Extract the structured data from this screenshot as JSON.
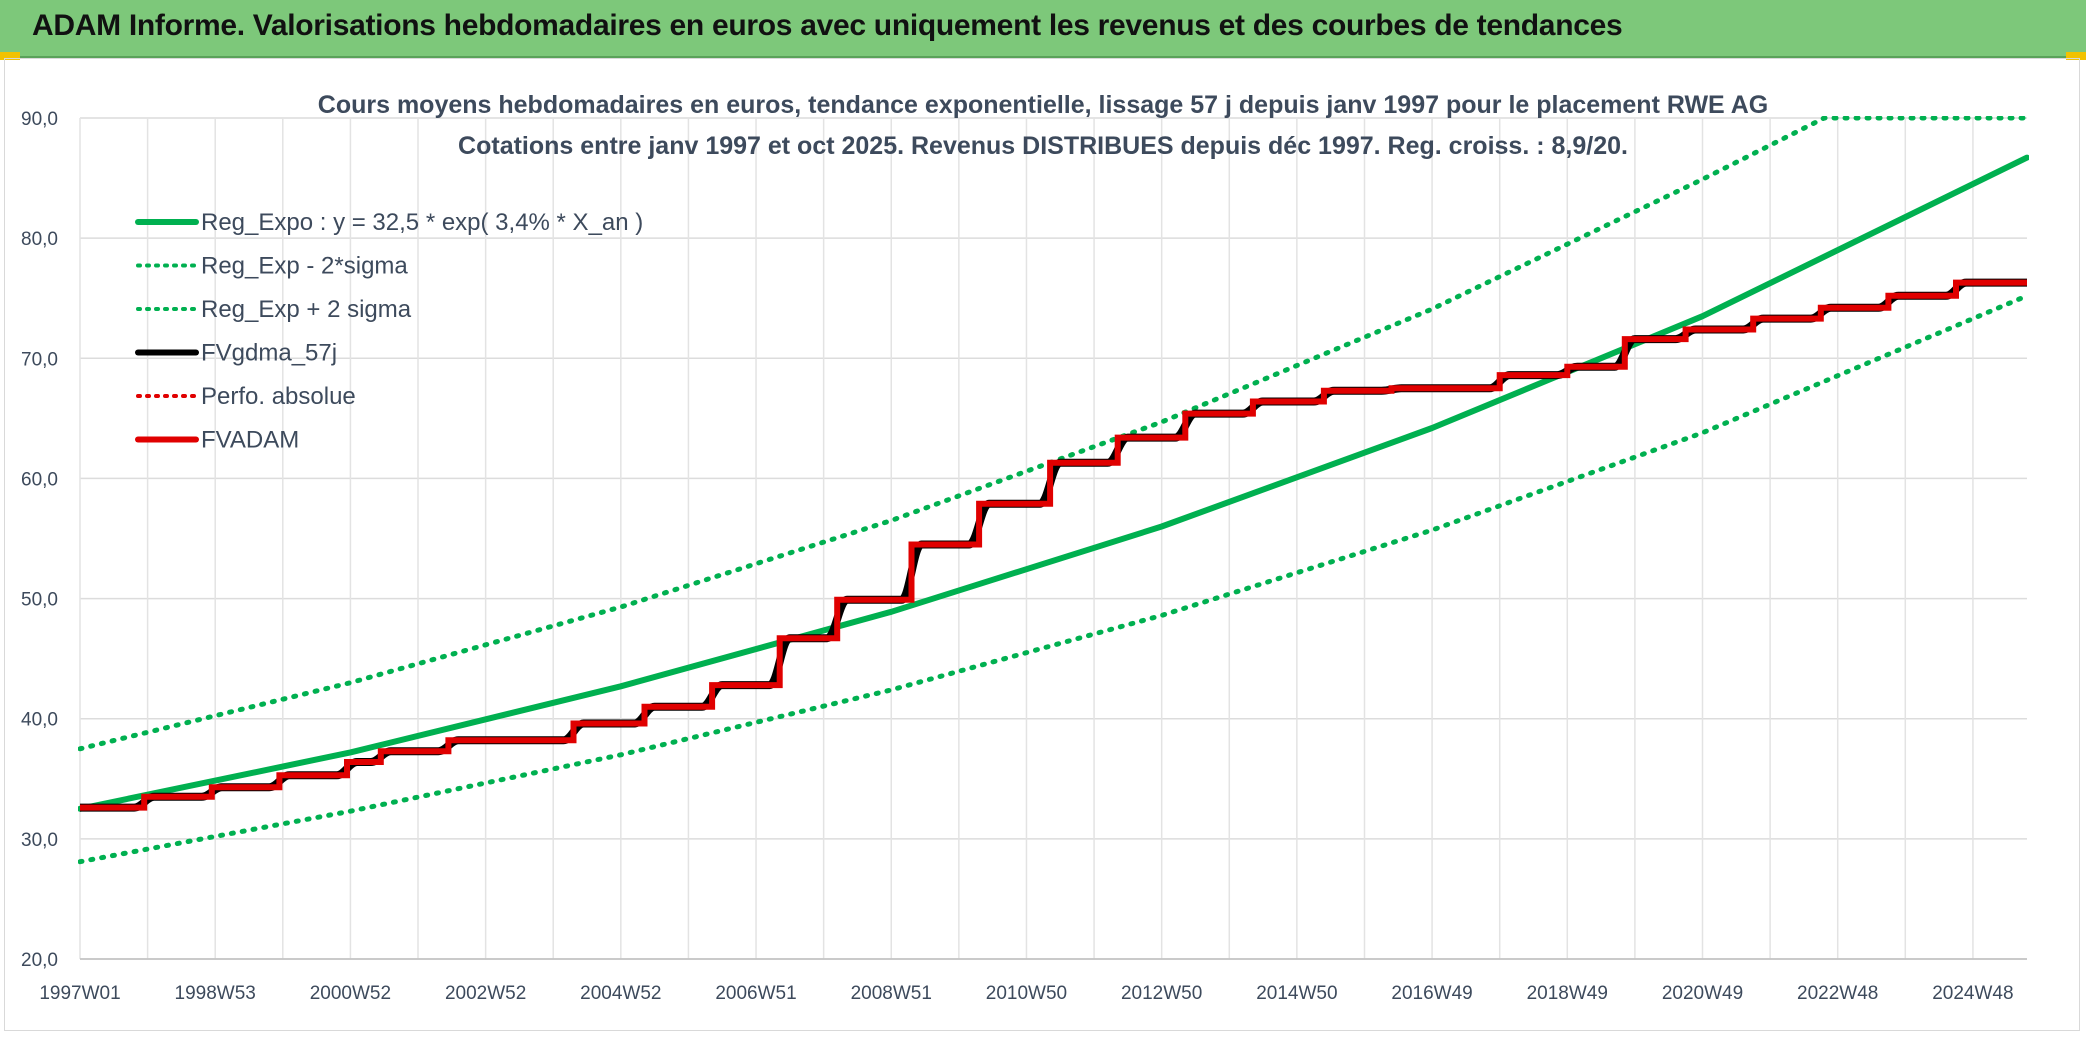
{
  "banner": {
    "title": "ADAM Informe. Valorisations hebdomadaires en euros avec uniquement les revenus et des courbes de tendances"
  },
  "chart_data": {
    "type": "line",
    "title": "Cours moyens hebdomadaires en euros, tendance exponentielle, lissage 57 j depuis janv 1997 pour le placement RWE AG",
    "subtitle": "Cotations entre janv 1997 et oct 2025. Revenus DISTRIBUES depuis déc 1997. Reg. croiss. : 8,9/20.",
    "xlabel": "",
    "ylabel": "",
    "ylim": [
      20,
      90
    ],
    "xlim": [
      1997.0,
      2025.8
    ],
    "y_ticks": [
      "20,0",
      "30,0",
      "40,0",
      "50,0",
      "60,0",
      "70,0",
      "80,0",
      "90,0"
    ],
    "y_tick_values": [
      20,
      30,
      40,
      50,
      60,
      70,
      80,
      90
    ],
    "x_ticks": [
      "1997W01",
      "1998W53",
      "2000W52",
      "2002W52",
      "2004W52",
      "2006W51",
      "2008W51",
      "2010W50",
      "2012W50",
      "2014W50",
      "2016W49",
      "2018W49",
      "2020W49",
      "2022W48",
      "2024W48"
    ],
    "x_tick_values": [
      1997.0,
      1999.0,
      2001.0,
      2003.0,
      2005.0,
      2007.0,
      2009.0,
      2011.0,
      2013.0,
      2015.0,
      2017.0,
      2019.0,
      2021.0,
      2023.0,
      2025.0
    ],
    "grid": true,
    "legend_position": "top-left",
    "regression": {
      "a": 32.5,
      "rate": 0.034,
      "start_year": 1997.0
    },
    "series": [
      {
        "name": "Reg_Expo : y = 32,5 * exp( 3,4% *  X_an )",
        "color": "#00b050",
        "style": "solid",
        "points": [
          [
            1997.0,
            32.5
          ],
          [
            2001.0,
            37.2
          ],
          [
            2005.0,
            42.7
          ],
          [
            2009.0,
            48.9
          ],
          [
            2013.0,
            56.0
          ],
          [
            2017.0,
            64.2
          ],
          [
            2021.0,
            73.5
          ],
          [
            2025.8,
            86.7
          ]
        ]
      },
      {
        "name": "Reg_Exp - 2*sigma",
        "color": "#00b050",
        "style": "dotted",
        "points": [
          [
            1997.0,
            28.1
          ],
          [
            2001.0,
            32.3
          ],
          [
            2005.0,
            37.0
          ],
          [
            2009.0,
            42.4
          ],
          [
            2013.0,
            48.6
          ],
          [
            2017.0,
            55.7
          ],
          [
            2021.0,
            63.8
          ],
          [
            2025.8,
            75.2
          ]
        ]
      },
      {
        "name": "Reg_Exp + 2 sigma",
        "color": "#00b050",
        "style": "dotted",
        "points": [
          [
            1997.0,
            37.5
          ],
          [
            2001.0,
            43.0
          ],
          [
            2005.0,
            49.3
          ],
          [
            2009.0,
            56.5
          ],
          [
            2013.0,
            64.7
          ],
          [
            2017.0,
            74.1
          ],
          [
            2021.0,
            84.9
          ],
          [
            2022.8,
            90.0
          ],
          [
            2025.8,
            90.0
          ]
        ]
      },
      {
        "name": "FVgdma_57j",
        "color": "#000000",
        "style": "solid",
        "points": []
      },
      {
        "name": "Perfo. absolue",
        "color": "#e00000",
        "style": "dotted",
        "points": []
      },
      {
        "name": "FVADAM",
        "color": "#e00000",
        "style": "solid",
        "steps": [
          [
            1997.0,
            32.6
          ],
          [
            1997.95,
            33.5
          ],
          [
            1998.95,
            34.3
          ],
          [
            1999.95,
            35.3
          ],
          [
            2000.95,
            36.4
          ],
          [
            2001.45,
            37.3
          ],
          [
            2002.45,
            38.2
          ],
          [
            2004.3,
            39.6
          ],
          [
            2005.35,
            41.0
          ],
          [
            2006.35,
            42.8
          ],
          [
            2007.35,
            46.7
          ],
          [
            2008.2,
            49.9
          ],
          [
            2009.3,
            54.5
          ],
          [
            2010.3,
            57.9
          ],
          [
            2011.35,
            61.3
          ],
          [
            2012.35,
            63.4
          ],
          [
            2013.35,
            65.4
          ],
          [
            2014.35,
            66.4
          ],
          [
            2015.4,
            67.3
          ],
          [
            2016.4,
            67.5
          ],
          [
            2018.0,
            68.6
          ],
          [
            2019.0,
            69.3
          ],
          [
            2019.85,
            71.6
          ],
          [
            2020.75,
            72.4
          ],
          [
            2021.75,
            73.3
          ],
          [
            2022.75,
            74.2
          ],
          [
            2023.75,
            75.2
          ],
          [
            2024.75,
            76.3
          ]
        ],
        "end_x": 2025.8
      }
    ]
  }
}
